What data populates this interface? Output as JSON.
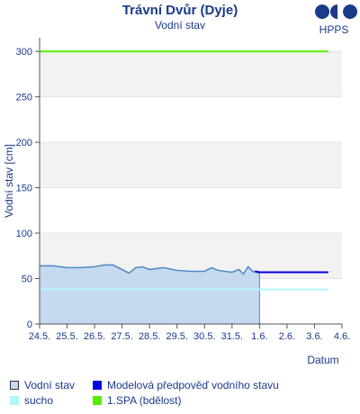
{
  "header": {
    "title": "Trávní Dvůr (Dyje)",
    "subtitle": "Vodní stav",
    "logo_text": "HPPS"
  },
  "colors": {
    "measured_fill": "#c5d9ef",
    "measured_line": "#4f87c5",
    "forecast_line": "#0000dd",
    "sucho": "#b0f7fa",
    "spa1": "#55ee00",
    "band": "#f2f2f2",
    "text": "#1a3a8a"
  },
  "chart_data": {
    "type": "area",
    "ylabel": "Vodní stav [cm]",
    "xlabel": "Datum",
    "ylim": [
      0,
      315
    ],
    "xlim": [
      "2024-05-24",
      "2024-06-04"
    ],
    "yticks": [
      0,
      50,
      100,
      150,
      200,
      250,
      300
    ],
    "xtick_labels": [
      "24.5.",
      "25.5.",
      "26.5.",
      "27.5.",
      "28.5.",
      "29.5.",
      "30.5.",
      "31.5.",
      "1.6.",
      "2.6.",
      "3.6.",
      "4.6."
    ],
    "series": [
      {
        "name": "Vodní stav",
        "style": "area",
        "x": [
          "2024-05-24 00:00",
          "2024-05-24 12:00",
          "2024-05-25 00:00",
          "2024-05-25 12:00",
          "2024-05-26 00:00",
          "2024-05-26 08:00",
          "2024-05-26 16:00",
          "2024-05-27 00:00",
          "2024-05-27 06:00",
          "2024-05-27 12:00",
          "2024-05-27 18:00",
          "2024-05-28 00:00",
          "2024-05-28 12:00",
          "2024-05-29 00:00",
          "2024-05-29 12:00",
          "2024-05-30 00:00",
          "2024-05-30 06:00",
          "2024-05-30 12:00",
          "2024-05-31 00:00",
          "2024-05-31 06:00",
          "2024-05-31 10:00",
          "2024-05-31 14:00",
          "2024-05-31 18:00",
          "2024-06-01 00:00"
        ],
        "values": [
          64,
          64,
          62,
          62,
          63,
          65,
          65,
          60,
          56,
          62,
          63,
          60,
          62,
          59,
          58,
          58,
          62,
          59,
          57,
          60,
          55,
          63,
          58,
          56
        ]
      },
      {
        "name": "Modelová předpověď vodního stavu",
        "style": "line",
        "x": [
          "2024-05-31 20:00",
          "2024-06-01 00:00",
          "2024-06-02 00:00",
          "2024-06-03 00:00",
          "2024-06-03 12:00"
        ],
        "values": [
          58,
          57,
          57,
          57,
          57
        ]
      },
      {
        "name": "sucho",
        "style": "hline",
        "value": 38,
        "x": [
          "2024-05-24 00:00",
          "2024-06-03 12:00"
        ]
      },
      {
        "name": "1.SPA (bdělost)",
        "style": "hline",
        "value": 300,
        "x": [
          "2024-05-24 00:00",
          "2024-06-03 12:00"
        ]
      }
    ]
  },
  "legend": [
    {
      "label": "Vodní stav",
      "kind": "measured"
    },
    {
      "label": "Modelová předpověď vodního stavu",
      "kind": "forecast"
    },
    {
      "label": "sucho",
      "kind": "sucho"
    },
    {
      "label": "1.SPA (bdělost)",
      "kind": "spa1"
    }
  ]
}
